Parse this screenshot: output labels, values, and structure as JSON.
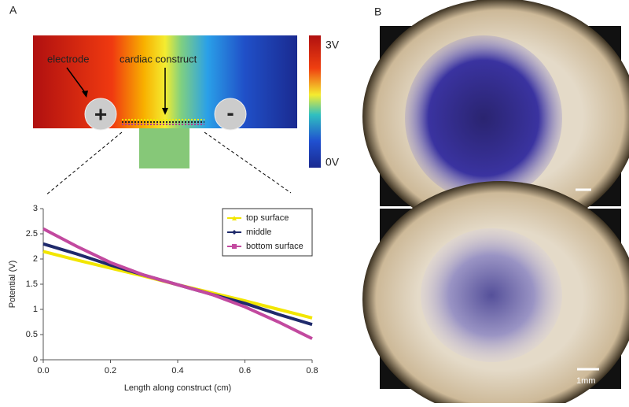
{
  "panels": {
    "left": "A",
    "right": "B"
  },
  "schematic": {
    "electrode_label": "electrode",
    "construct_label": "cardiac construct",
    "positive": "+",
    "negative": "-",
    "colorbar_max": "3V",
    "colorbar_min": "0V"
  },
  "photo": {
    "scale_label": "1mm"
  },
  "chart_data": {
    "type": "line",
    "xlabel": "Length along construct (cm)",
    "ylabel": "Potential (V)",
    "x": [
      0,
      0.1,
      0.2,
      0.3,
      0.4,
      0.5,
      0.6,
      0.7,
      0.8
    ],
    "series": [
      {
        "name": "top surface",
        "color": "#f2e600",
        "marker": "triangle",
        "values": [
          2.15,
          1.98,
          1.82,
          1.66,
          1.49,
          1.33,
          1.17,
          1.0,
          0.83
        ]
      },
      {
        "name": "middle",
        "color": "#1f2a6b",
        "marker": "diamond",
        "values": [
          2.3,
          2.1,
          1.88,
          1.68,
          1.49,
          1.3,
          1.12,
          0.9,
          0.7
        ]
      },
      {
        "name": "bottom surface",
        "color": "#c2499f",
        "marker": "square",
        "values": [
          2.6,
          2.25,
          1.93,
          1.68,
          1.49,
          1.3,
          1.05,
          0.75,
          0.42
        ]
      }
    ],
    "xlim": [
      0,
      0.8
    ],
    "xticks": [
      {
        "value": 0,
        "label": "0.0"
      },
      0.2,
      0.4,
      0.6,
      0.8
    ],
    "ylim": [
      0,
      3
    ],
    "yticks": [
      0,
      0.5,
      1,
      1.5,
      2,
      2.5,
      3
    ],
    "legend": "upper right"
  }
}
